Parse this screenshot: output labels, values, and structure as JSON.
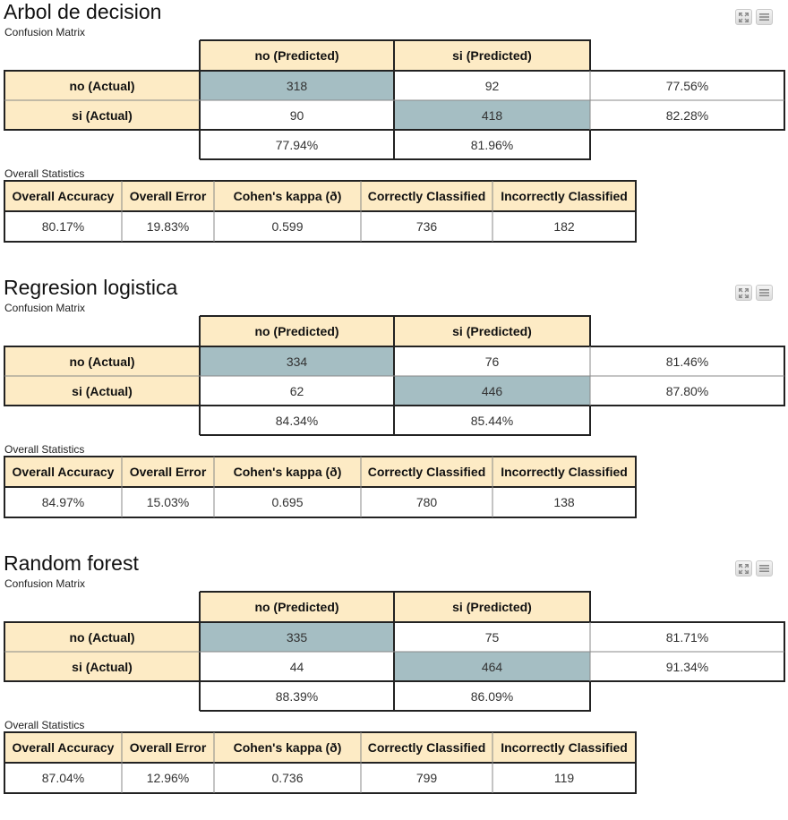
{
  "headers": {
    "predicted": [
      "no (Predicted)",
      "si (Predicted)"
    ],
    "actual": [
      "no (Actual)",
      "si (Actual)"
    ]
  },
  "stat_headers": [
    "Overall Accuracy",
    "Overall Error",
    "Cohen's kappa (ð\u001d\u001c)",
    "Correctly Classified",
    "Incorrectly Classified"
  ],
  "stats_label": "Overall Statistics",
  "subtitle": "Confusion Matrix",
  "icons": [
    "expand-icon",
    "menu-icon"
  ],
  "colors": {
    "header": "#fdebc5",
    "diagonal": "#a5bec3"
  },
  "models": [
    {
      "title": "Arbol de decision",
      "matrix": [
        [
          "318",
          "92"
        ],
        [
          "90",
          "418"
        ]
      ],
      "row_pct": [
        "77.56%",
        "82.28%"
      ],
      "col_pct": [
        "77.94%",
        "81.96%"
      ],
      "stats": [
        "80.17%",
        "19.83%",
        "0.599",
        "736",
        "182"
      ]
    },
    {
      "title": "Regresion logistica",
      "matrix": [
        [
          "334",
          "76"
        ],
        [
          "62",
          "446"
        ]
      ],
      "row_pct": [
        "81.46%",
        "87.80%"
      ],
      "col_pct": [
        "84.34%",
        "85.44%"
      ],
      "stats": [
        "84.97%",
        "15.03%",
        "0.695",
        "780",
        "138"
      ]
    },
    {
      "title": "Random forest",
      "matrix": [
        [
          "335",
          "75"
        ],
        [
          "44",
          "464"
        ]
      ],
      "row_pct": [
        "81.71%",
        "91.34%"
      ],
      "col_pct": [
        "88.39%",
        "86.09%"
      ],
      "stats": [
        "87.04%",
        "12.96%",
        "0.736",
        "799",
        "119"
      ]
    }
  ]
}
